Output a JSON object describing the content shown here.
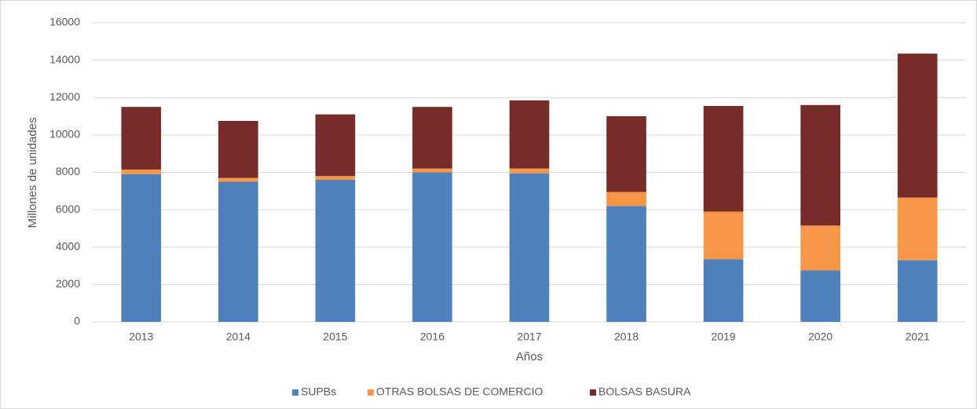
{
  "chart_data": {
    "type": "stacked-bar",
    "x_label": "Años",
    "y_label": "Millones de unidades",
    "categories": [
      "2013",
      "2014",
      "2015",
      "2016",
      "2017",
      "2018",
      "2019",
      "2020",
      "2021"
    ],
    "series": [
      {
        "name": "SUPBs",
        "color": "#4f81bd",
        "values": [
          7900,
          7500,
          7600,
          8000,
          7950,
          6200,
          3350,
          2750,
          3300
        ]
      },
      {
        "name": "OTRAS BOLSAS DE COMERCIO",
        "color": "#f79646",
        "values": [
          250,
          200,
          200,
          200,
          250,
          750,
          2550,
          2400,
          3350
        ]
      },
      {
        "name": "BOLSAS BASURA",
        "color": "#772c2a",
        "values": [
          3350,
          3050,
          3300,
          3300,
          3650,
          4050,
          5650,
          6450,
          7700
        ]
      }
    ],
    "ylim": [
      0,
      16000
    ],
    "yticks": [
      0,
      2000,
      4000,
      6000,
      8000,
      10000,
      12000,
      14000,
      16000
    ],
    "grid": true,
    "legend": "bottom"
  }
}
